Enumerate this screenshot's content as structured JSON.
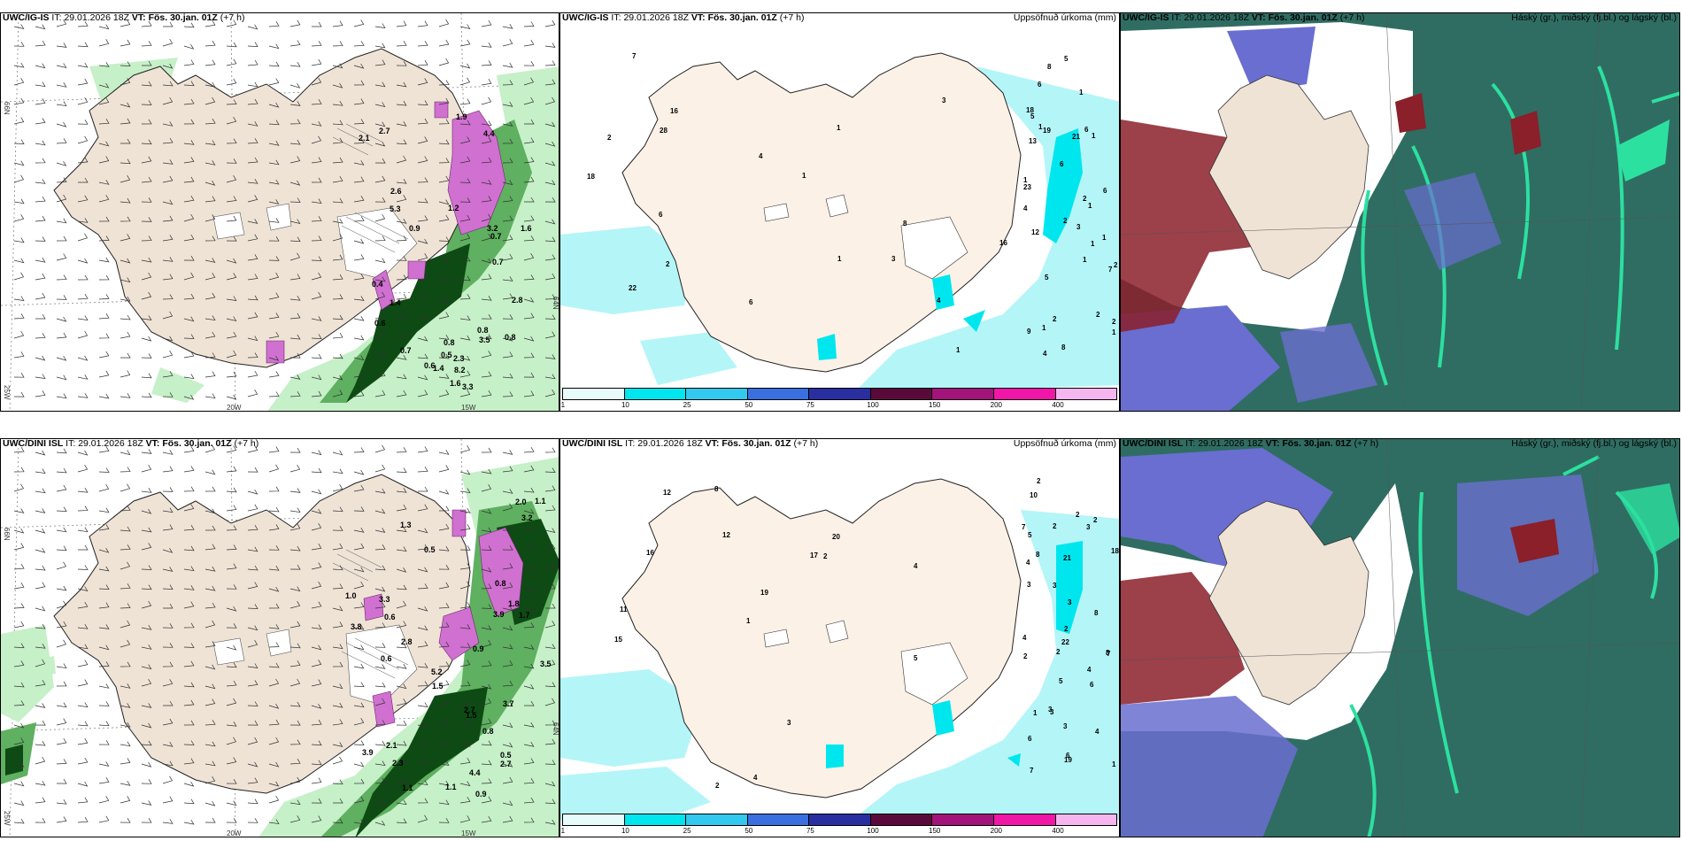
{
  "panels": [
    {
      "id": "p1",
      "model": "UWC/IG-IS",
      "it_label": "IT:",
      "it": "29.01.2026 18Z",
      "vt_label": "VT:",
      "vt": "Fös. 30.jan. 01Z",
      "lead": "(+7 h)",
      "right_title": "",
      "type": "wind"
    },
    {
      "id": "p2",
      "model": "UWC/IG-IS",
      "it_label": "IT:",
      "it": "29.01.2026 18Z",
      "vt_label": "VT:",
      "vt": "Fös. 30.jan. 01Z",
      "lead": "(+7 h)",
      "right_title": "Uppsöfnuð úrkoma (mm)",
      "type": "precip"
    },
    {
      "id": "p3",
      "model": "UWC/IG-IS",
      "it_label": "IT:",
      "it": "29.01.2026 18Z",
      "vt_label": "VT:",
      "vt": "Fös. 30.jan. 01Z",
      "lead": "(+7 h)",
      "right_title": "Háský (gr.), miðský (fj.bl.) og lágský (bl.)",
      "type": "cloud"
    },
    {
      "id": "p4",
      "model": "UWC/DINI ISL",
      "it_label": "IT:",
      "it": "29.01.2026 18Z",
      "vt_label": "VT:",
      "vt": "Fös. 30.jan. 01Z",
      "lead": "(+7 h)",
      "right_title": "",
      "type": "wind"
    },
    {
      "id": "p5",
      "model": "UWC/DINI ISL",
      "it_label": "IT:",
      "it": "29.01.2026 18Z",
      "vt_label": "VT:",
      "vt": "Fös. 30.jan. 01Z",
      "lead": "(+7 h)",
      "right_title": "Uppsöfnuð úrkoma (mm)",
      "type": "precip"
    },
    {
      "id": "p6",
      "model": "UWC/DINI ISL",
      "it_label": "IT:",
      "it": "29.01.2026 18Z",
      "vt_label": "VT:",
      "vt": "Fös. 30.jan. 01Z",
      "lead": "(+7 h)",
      "right_title": "Háský (gr.), miðský (fj.bl.) og lágský (bl.)",
      "type": "cloud"
    }
  ],
  "axis_labels": {
    "lon_20w": "20W",
    "lon_15w": "15W",
    "lat_66n": "66N",
    "lat_64n": "64N",
    "lon_25w": "25W"
  },
  "colorbar": {
    "ticks": [
      "1",
      "10",
      "25",
      "50",
      "75",
      "100",
      "150",
      "200",
      "400"
    ],
    "colors": [
      "#e8fbfb",
      "#00e6ef",
      "#33c8ee",
      "#3a6fe0",
      "#2a2fa0",
      "#5a0a3a",
      "#a2147a",
      "#f016a8",
      "#f5b6f0"
    ]
  },
  "colors": {
    "land": "#efe3d6",
    "land_light": "#f7ede4",
    "precip_light": "#b4f5f8",
    "green_light": "#c6f0c8",
    "green_mid": "#5fb060",
    "green_dark": "#0e4a14",
    "magenta": "#d070d0",
    "cloud_high": "#2f6d62",
    "cloud_mid": "#6a6ed0",
    "cloud_low": "#8b1f2a",
    "cloud_green": "#2ce0a0"
  },
  "p1_labels": [
    "0.6",
    "0.8",
    "1.2",
    "2.1",
    "1.6",
    "0.6",
    "0.5",
    "0.4",
    "3.2",
    "2.6",
    "1.4",
    "0.8",
    "1.4",
    "3.3",
    "4.4",
    "8.2",
    "0.8",
    "3.5",
    "2.8",
    "0.7",
    "2.7",
    "0.7",
    "5.3",
    "0.9",
    "2.3",
    "0.7",
    "1.9",
    "1.6"
  ],
  "p4_labels": [
    "0.9",
    "1.3",
    "2.1",
    "3.3",
    "1.8",
    "4.4",
    "3.5",
    "2.8",
    "1.5",
    "2.3",
    "3.9",
    "1.0",
    "5.2",
    "2.7",
    "3.9",
    "2.0",
    "3.8",
    "3.2",
    "3.7",
    "1.7",
    "0.5",
    "1.5",
    "1.1",
    "2.7",
    "0.9",
    "0.8",
    "0.6",
    "0.6",
    "1.1",
    "0.5",
    "0.8",
    "1.1"
  ],
  "p2_numbers": [
    "1",
    "6",
    "1",
    "2",
    "1",
    "7",
    "28",
    "1",
    "4",
    "22",
    "21",
    "18",
    "23",
    "2",
    "16",
    "2",
    "6",
    "9",
    "16",
    "1",
    "1",
    "6",
    "18",
    "1",
    "1",
    "19",
    "3",
    "2",
    "1",
    "2",
    "12",
    "1",
    "1",
    "4",
    "5",
    "3",
    "2",
    "1",
    "4",
    "8",
    "1",
    "6",
    "13",
    "6",
    "5",
    "8",
    "7",
    "4",
    "5",
    "2",
    "2",
    "6",
    "8",
    "3",
    "1"
  ],
  "p5_numbers": [
    "2",
    "2",
    "7",
    "3",
    "15",
    "3",
    "20",
    "1",
    "19",
    "22",
    "12",
    "17",
    "2",
    "19",
    "18",
    "2",
    "3",
    "16",
    "10",
    "4",
    "1",
    "3",
    "21",
    "2",
    "4",
    "6",
    "5",
    "3",
    "5",
    "2",
    "2",
    "7",
    "8",
    "1",
    "8",
    "6",
    "8",
    "12",
    "4",
    "7",
    "4",
    "3",
    "3",
    "2",
    "11",
    "3",
    "8",
    "4",
    "4",
    "6",
    "5",
    "2"
  ]
}
